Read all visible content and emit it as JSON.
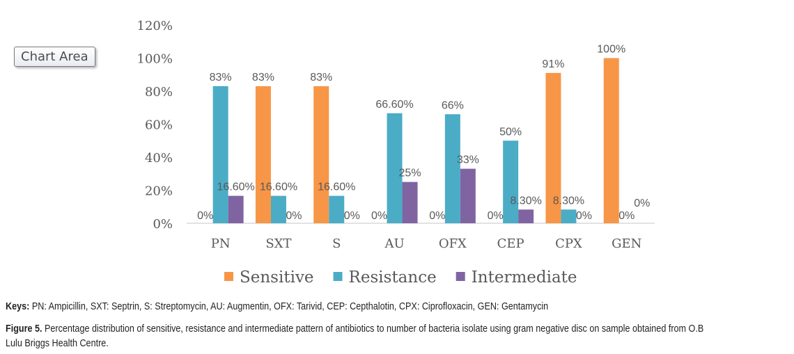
{
  "chart_data": {
    "type": "bar",
    "title": "",
    "xlabel": "",
    "ylabel": "",
    "ylim": [
      0,
      120
    ],
    "yticks": [
      "0%",
      "20%",
      "40%",
      "60%",
      "80%",
      "100%",
      "120%"
    ],
    "hidden_ytick_note": "",
    "categories": [
      "PN",
      "SXT",
      "S",
      "AU",
      "OFX",
      "CEP",
      "CPX",
      "GEN"
    ],
    "legend_position": "bottom",
    "grid": false,
    "series": [
      {
        "name": "Sensitive",
        "color": "#F79646",
        "values": [
          0,
          83,
          83,
          0,
          0,
          0,
          91,
          100
        ],
        "labels": [
          "0%",
          "83%",
          "83%",
          "0%",
          "0%",
          "0%",
          "91%",
          "100%"
        ]
      },
      {
        "name": "Resistance",
        "color": "#4BACC6",
        "values": [
          83,
          16.6,
          16.6,
          66.6,
          66,
          50,
          8.3,
          0
        ],
        "labels": [
          "83%",
          "16.60%",
          "16.60%",
          "66.60%",
          "66%",
          "50%",
          "8.30%",
          "0%"
        ]
      },
      {
        "name": "Intermediate",
        "color": "#8064A2",
        "values": [
          16.6,
          0,
          0,
          25,
          33,
          8.3,
          0,
          0
        ],
        "labels": [
          "16.60%",
          "0%",
          "0%",
          "25%",
          "33%",
          "8.30%",
          "0%",
          "0%"
        ]
      }
    ]
  },
  "tooltip": "Chart Area",
  "keys": {
    "label": "Keys:",
    "text": " PN: Ampicillin, SXT: Septrin, S: Streptomycin, AU: Augmentin, OFX: Tarivid, CEP: Cepthalotin, CPX: Ciprofloxacin, GEN: Gentamycin"
  },
  "caption": {
    "label": "Figure 5.",
    "line1": " Percentage distribution of sensitive, resistance and intermediate pattern of antibiotics to number of bacteria isolate using gram negative disc on sample obtained from O.B",
    "line2": "Lulu Briggs Health Centre."
  }
}
